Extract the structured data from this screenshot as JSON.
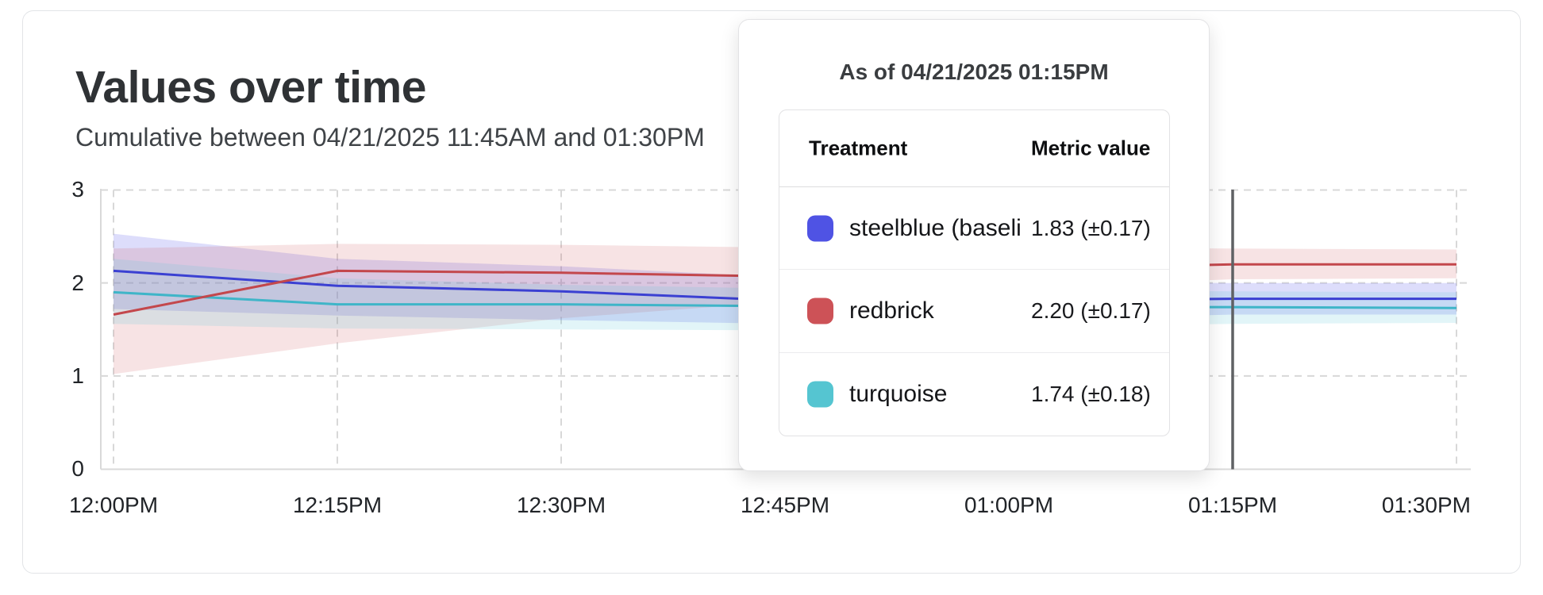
{
  "header": {
    "title": "Values over time",
    "subtitle": "Cumulative between 04/21/2025 11:45AM and 01:30PM"
  },
  "tooltip": {
    "title": "As of 04/21/2025 01:15PM",
    "columns": {
      "treatment": "Treatment",
      "metric": "Metric value"
    },
    "rows": [
      {
        "label": "steelblue  (baseli",
        "value": "1.83 (±0.17)",
        "color": "#4f53e4"
      },
      {
        "label": "redbrick",
        "value": "2.20 (±0.17)",
        "color": "#cd5257"
      },
      {
        "label": "turquoise",
        "value": "1.74 (±0.18)",
        "color": "#55c5d1"
      }
    ]
  },
  "chart_data": {
    "type": "line",
    "title": "Values over time",
    "x_labels": [
      "12:00PM",
      "12:15PM",
      "12:30PM",
      "12:45PM",
      "01:00PM",
      "01:15PM",
      "01:30PM"
    ],
    "x_minutes": [
      0,
      15,
      30,
      45,
      60,
      75,
      90
    ],
    "y_ticks": [
      0,
      1,
      2,
      3
    ],
    "ylim": [
      0,
      3
    ],
    "grid": true,
    "marker_index": 5,
    "marker_label": "01:15PM",
    "series": [
      {
        "name": "steelblue",
        "line_color": "#3b40d2",
        "band_color": "rgba(99,102,235,0.22)",
        "values": [
          2.13,
          1.97,
          1.91,
          1.81,
          1.81,
          1.83,
          1.83
        ],
        "upper": [
          2.53,
          2.26,
          2.18,
          2.06,
          2.01,
          2.0,
          2.0
        ],
        "lower": [
          1.72,
          1.65,
          1.6,
          1.56,
          1.6,
          1.66,
          1.66
        ]
      },
      {
        "name": "redbrick",
        "line_color": "#c3474c",
        "band_color": "rgba(208,90,95,0.17)",
        "values": [
          1.66,
          2.13,
          2.11,
          2.07,
          2.14,
          2.2,
          2.2
        ],
        "upper": [
          2.37,
          2.42,
          2.41,
          2.38,
          2.38,
          2.37,
          2.36
        ],
        "lower": [
          1.02,
          1.35,
          1.62,
          1.8,
          1.95,
          2.04,
          2.05
        ]
      },
      {
        "name": "turquoise",
        "line_color": "#3fb5c8",
        "band_color": "rgba(93,198,214,0.18)",
        "values": [
          1.9,
          1.77,
          1.77,
          1.75,
          1.74,
          1.74,
          1.73
        ],
        "upper": [
          2.26,
          2.05,
          1.98,
          1.94,
          1.92,
          1.91,
          1.9
        ],
        "lower": [
          1.56,
          1.51,
          1.5,
          1.49,
          1.52,
          1.56,
          1.57
        ]
      }
    ],
    "colors": {
      "grid": "#d8d8d8",
      "axis": "#d9d9d9",
      "marker_line": "#5f6164",
      "tick_text": "#212428"
    }
  }
}
